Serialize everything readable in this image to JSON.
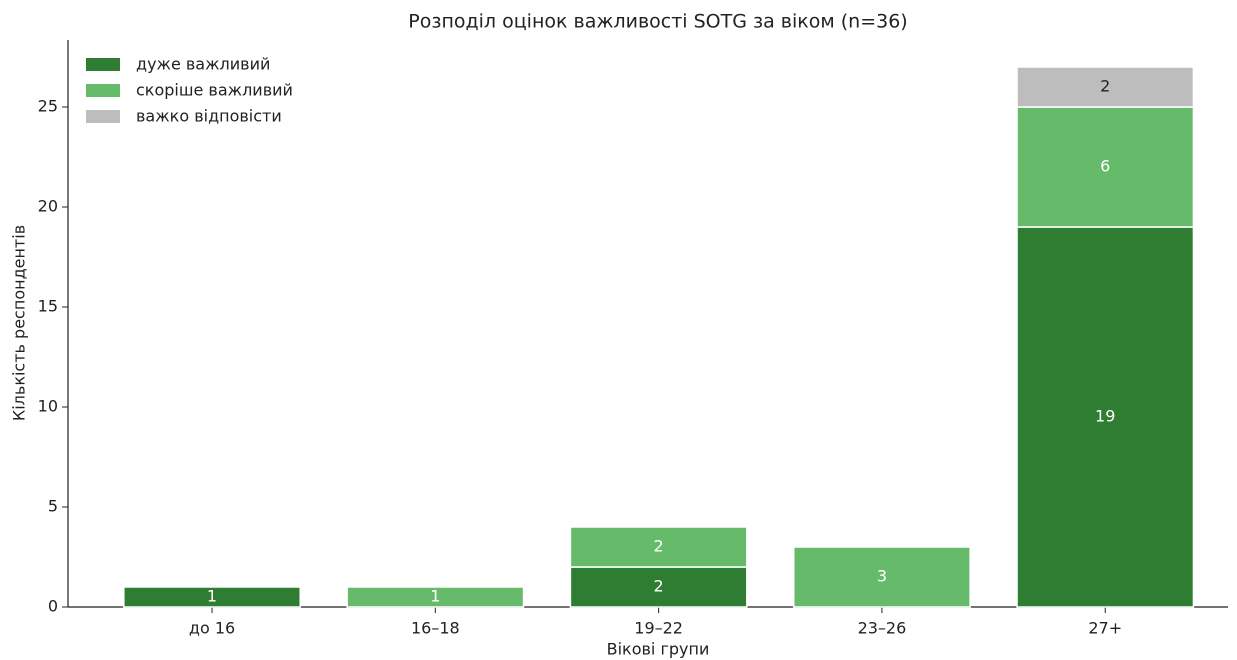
{
  "chart_data": {
    "type": "stacked_bar",
    "title": "Розподіл оцінок важливості SOTG за віком (n=36)",
    "x_label": "Вікові групи",
    "y_label": "Кількість респондентів",
    "categories": [
      "до 16",
      "16–18",
      "19–22",
      "23–26",
      "27+"
    ],
    "series": [
      {
        "name": "дуже важливий",
        "color": "#2e7d32",
        "values": [
          1,
          0,
          2,
          0,
          19
        ]
      },
      {
        "name": "скоріше важливий",
        "color": "#66bb6a",
        "values": [
          0,
          1,
          2,
          3,
          6
        ]
      },
      {
        "name": "важко відповісти",
        "color": "#bdbdbd",
        "values": [
          0,
          0,
          0,
          0,
          2
        ]
      }
    ],
    "ylim": [
      0,
      28.35
    ],
    "yticks": [
      0,
      5,
      10,
      15,
      20,
      25
    ],
    "legend": "upper left"
  }
}
